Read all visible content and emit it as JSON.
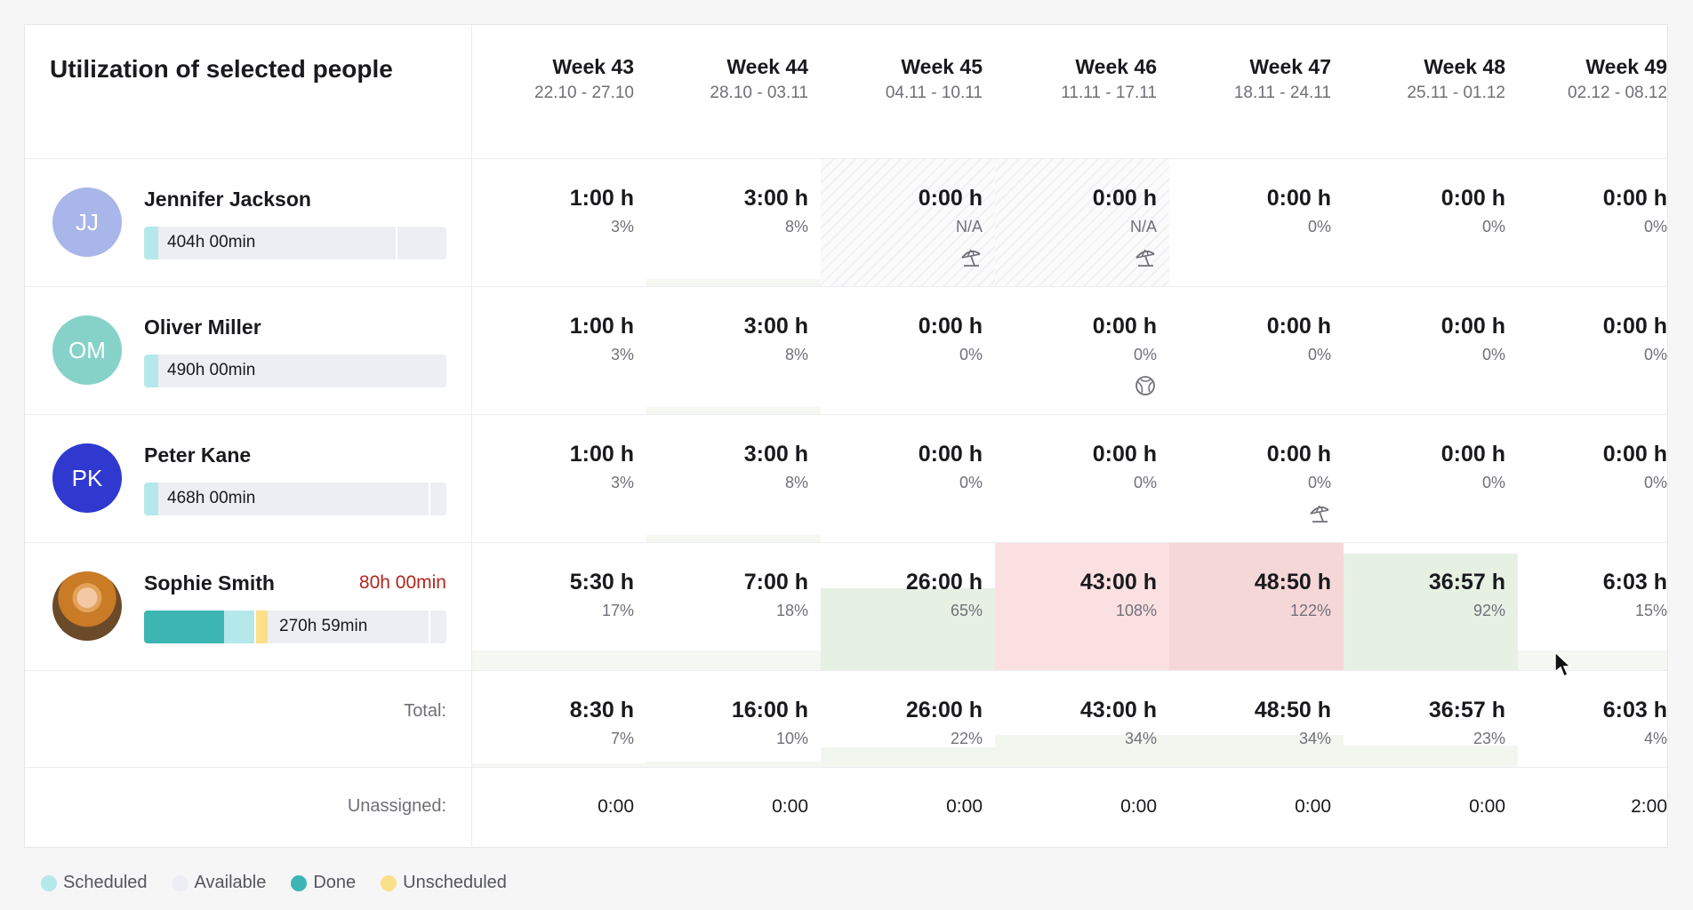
{
  "title": "Utilization of selected people",
  "weeks": [
    {
      "name": "Week 43",
      "dates": "22.10 - 27.10"
    },
    {
      "name": "Week 44",
      "dates": "28.10 - 03.11"
    },
    {
      "name": "Week 45",
      "dates": "04.11 - 10.11"
    },
    {
      "name": "Week 46",
      "dates": "11.11 - 17.11"
    },
    {
      "name": "Week 47",
      "dates": "18.11 - 24.11"
    },
    {
      "name": "Week 48",
      "dates": "25.11 - 01.12"
    },
    {
      "name": "Week 49",
      "dates": "02.12 - 08.12"
    }
  ],
  "people": [
    {
      "initials": "JJ",
      "name": "Jennifer Jackson",
      "avatar_color": "#a9b6ea",
      "overtime": "",
      "bar_label": "404h 00min",
      "cells": [
        {
          "h": "1:00 h",
          "p": "3%"
        },
        {
          "h": "3:00 h",
          "p": "8%"
        },
        {
          "h": "0:00 h",
          "p": "N/A",
          "icon": "beach-umbrella-icon"
        },
        {
          "h": "0:00 h",
          "p": "N/A",
          "icon": "beach-umbrella-icon"
        },
        {
          "h": "0:00 h",
          "p": "0%"
        },
        {
          "h": "0:00 h",
          "p": "0%"
        },
        {
          "h": "0:00 h",
          "p": "0%"
        }
      ]
    },
    {
      "initials": "OM",
      "name": "Oliver Miller",
      "avatar_color": "#86d2c8",
      "overtime": "",
      "bar_label": "490h 00min",
      "cells": [
        {
          "h": "1:00 h",
          "p": "3%"
        },
        {
          "h": "3:00 h",
          "p": "8%"
        },
        {
          "h": "0:00 h",
          "p": "0%"
        },
        {
          "h": "0:00 h",
          "p": "0%",
          "icon": "holiday-globe-icon"
        },
        {
          "h": "0:00 h",
          "p": "0%"
        },
        {
          "h": "0:00 h",
          "p": "0%"
        },
        {
          "h": "0:00 h",
          "p": "0%"
        }
      ]
    },
    {
      "initials": "PK",
      "name": "Peter Kane",
      "avatar_color": "#2f39cf",
      "overtime": "",
      "bar_label": "468h 00min",
      "cells": [
        {
          "h": "1:00 h",
          "p": "3%"
        },
        {
          "h": "3:00 h",
          "p": "8%"
        },
        {
          "h": "0:00 h",
          "p": "0%"
        },
        {
          "h": "0:00 h",
          "p": "0%"
        },
        {
          "h": "0:00 h",
          "p": "0%",
          "icon": "beach-umbrella-icon"
        },
        {
          "h": "0:00 h",
          "p": "0%"
        },
        {
          "h": "0:00 h",
          "p": "0%"
        }
      ]
    },
    {
      "initials": "",
      "name": "Sophie Smith",
      "avatar_color": "",
      "overtime": "80h 00min",
      "bar_label": "270h 59min",
      "cells": [
        {
          "h": "5:30 h",
          "p": "17%"
        },
        {
          "h": "7:00 h",
          "p": "18%"
        },
        {
          "h": "26:00 h",
          "p": "65%"
        },
        {
          "h": "43:00 h",
          "p": "108%"
        },
        {
          "h": "48:50 h",
          "p": "122%"
        },
        {
          "h": "36:57 h",
          "p": "92%"
        },
        {
          "h": "6:03 h",
          "p": "15%"
        }
      ]
    }
  ],
  "total": {
    "label": "Total:",
    "cells": [
      {
        "h": "8:30 h",
        "p": "7%"
      },
      {
        "h": "16:00 h",
        "p": "10%"
      },
      {
        "h": "26:00 h",
        "p": "22%"
      },
      {
        "h": "43:00 h",
        "p": "34%"
      },
      {
        "h": "48:50 h",
        "p": "34%"
      },
      {
        "h": "36:57 h",
        "p": "23%"
      },
      {
        "h": "6:03 h",
        "p": "4%"
      }
    ]
  },
  "unassigned": {
    "label": "Unassigned:",
    "values": [
      "0:00",
      "0:00",
      "0:00",
      "0:00",
      "0:00",
      "0:00",
      "2:00"
    ]
  },
  "legend": [
    {
      "label": "Scheduled",
      "color": "#b5e8ea"
    },
    {
      "label": "Available",
      "color": "#eceef3"
    },
    {
      "label": "Done",
      "color": "#3db5b3"
    },
    {
      "label": "Unscheduled",
      "color": "#fbe08a"
    }
  ]
}
